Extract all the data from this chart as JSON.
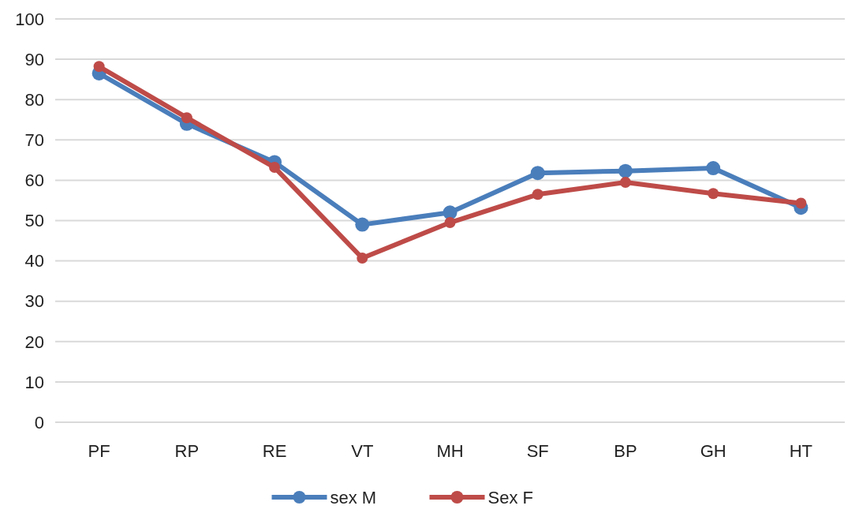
{
  "chart_data": {
    "type": "line",
    "categories": [
      "PF",
      "RP",
      "RE",
      "VT",
      "MH",
      "SF",
      "BP",
      "GH",
      "HT"
    ],
    "series": [
      {
        "name": "sex M",
        "color": "#4a7ebb",
        "values": [
          86.5,
          74,
          64.5,
          49,
          52,
          61.8,
          62.3,
          63,
          53.2
        ]
      },
      {
        "name": "Sex F",
        "color": "#be4b48",
        "values": [
          88.2,
          75.5,
          63.2,
          40.7,
          49.5,
          56.5,
          59.5,
          56.7,
          54.3
        ]
      }
    ],
    "ylim": [
      0,
      100
    ],
    "yticks": [
      0,
      10,
      20,
      30,
      40,
      50,
      60,
      70,
      80,
      90,
      100
    ],
    "grid": "y",
    "legend": "bottom",
    "marker": "circle",
    "line_style": "solid"
  }
}
